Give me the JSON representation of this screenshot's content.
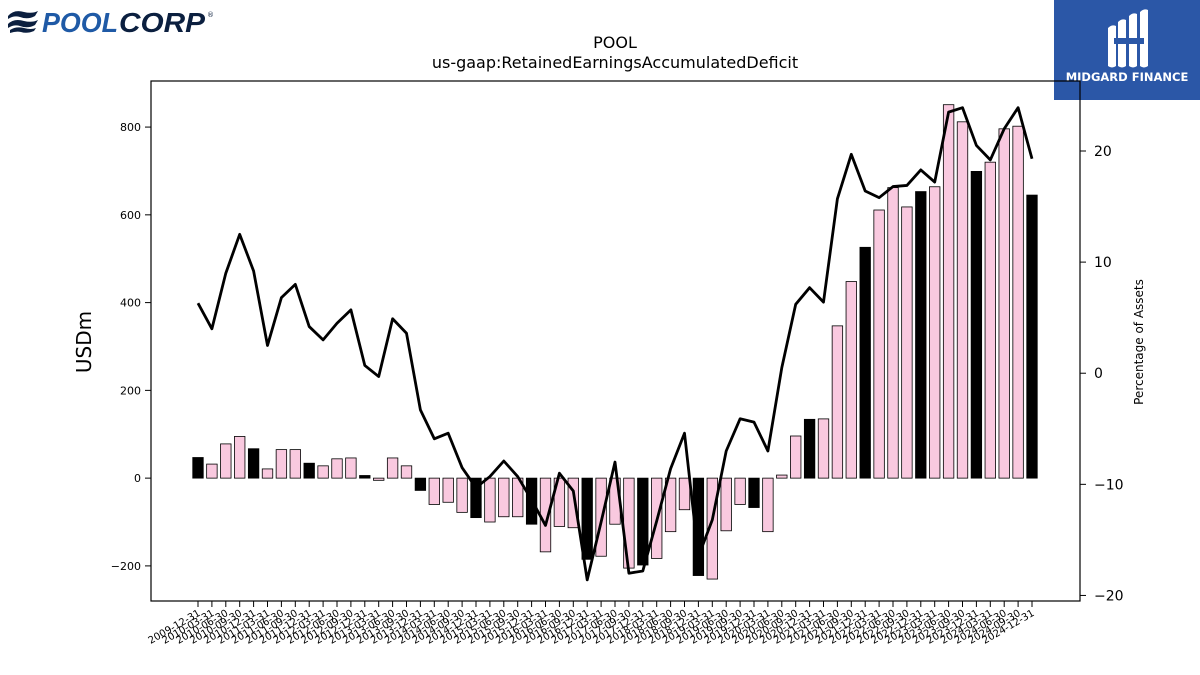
{
  "brand": {
    "left_logo": {
      "wordmark_a": "POOL",
      "wordmark_b": "CORP",
      "mark": "®",
      "color": "#1f5aa6"
    },
    "right_logo": {
      "name": "MIDGARD FINANCE",
      "bg": "#2b57a7"
    }
  },
  "chart_data": {
    "type": "bar+line",
    "title": "POOL",
    "subtitle": "us-gaap:RetainedEarningsAccumulatedDeficit",
    "ylabel": "USDm",
    "y2label": "Percentage of Assets",
    "ylim": [
      -280,
      905
    ],
    "y2lim": [
      -20.5,
      26.3
    ],
    "yticks": [
      -200,
      0,
      200,
      400,
      600,
      800
    ],
    "y2ticks": [
      -20,
      -10,
      0,
      10,
      20
    ],
    "bar_fill": "#f9c9df",
    "bar_fill_q4": "#000000",
    "line_color": "#000000",
    "categories": [
      "2009-12-31",
      "2010-03-31",
      "2010-06-30",
      "2010-09-30",
      "2010-12-31",
      "2011-03-31",
      "2011-06-30",
      "2011-09-30",
      "2011-12-31",
      "2012-03-31",
      "2012-06-30",
      "2012-09-30",
      "2012-12-31",
      "2013-03-31",
      "2013-06-30",
      "2013-09-30",
      "2013-12-31",
      "2014-03-31",
      "2014-06-30",
      "2014-09-30",
      "2014-12-31",
      "2015-03-31",
      "2015-06-30",
      "2015-09-30",
      "2015-12-31",
      "2016-03-31",
      "2016-06-30",
      "2016-09-30",
      "2016-12-31",
      "2017-03-31",
      "2017-06-30",
      "2017-09-30",
      "2017-12-31",
      "2018-03-31",
      "2018-06-30",
      "2018-09-30",
      "2018-12-31",
      "2019-03-31",
      "2019-06-30",
      "2019-09-30",
      "2019-12-31",
      "2020-03-31",
      "2020-06-30",
      "2020-09-30",
      "2020-12-31",
      "2021-03-31",
      "2021-06-30",
      "2021-09-30",
      "2021-12-31",
      "2022-03-31",
      "2022-06-30",
      "2022-09-30",
      "2022-12-31",
      "2023-03-31",
      "2023-06-30",
      "2023-09-30",
      "2023-12-31",
      "2024-03-31",
      "2024-06-30",
      "2024-09-30",
      "2024-12-31"
    ],
    "tick_labels": [
      "2009-12-31",
      "2010-03-31",
      "2010-06-30",
      "2010-09-30",
      "2010-12-31",
      "2011-03-31",
      "2011-06-30",
      "2011-09-30",
      "2011-12-31",
      "2012-03-31",
      "2012-06-30",
      "2012-09-30",
      "2012-12-31",
      "2013-03-31",
      "2013-06-30",
      "2013-09-30",
      "2013-12-31",
      "2014-03-31",
      "2014-06-30",
      "2014-09-30",
      "2014-12-31",
      "2015-03-31",
      "2015-06-30",
      "2015-09-30",
      "2015-12-31",
      "2016-03-31",
      "2016-06-30",
      "2016-09-30",
      "2016-12-31",
      "2017-03-31",
      "2017-06-30",
      "2017-09-30",
      "2017-12-31",
      "2018-03-31",
      "2018-06-30",
      "2018-09-30",
      "2018-12-31",
      "2019-03-31",
      "2019-06-30",
      "2019-09-30",
      "2019-12-31",
      "2020-03-31",
      "2020-06-30",
      "2020-09-30",
      "2020-12-31",
      "2021-03-31",
      "2021-06-30",
      "2021-09-30",
      "2021-12-31",
      "2022-03-31",
      "2022-06-30",
      "2022-09-30",
      "2022-12-31",
      "2023-03-31",
      "2023-06-30",
      "2023-09-30",
      "2023-12-31",
      "2024-03-31",
      "2024-06-30",
      "2024-09-30",
      "2024-12-31"
    ],
    "series": [
      {
        "name": "USDm",
        "kind": "bar",
        "values": [
          47,
          32,
          78,
          95,
          67,
          21,
          65,
          65,
          34,
          28,
          44,
          46,
          6,
          -5,
          46,
          28,
          -28,
          -60,
          -55,
          -78,
          -90,
          -100,
          -88,
          -88,
          -105,
          -168,
          -110,
          -113,
          -185,
          -178,
          -105,
          -205,
          -198,
          -183,
          -122,
          -72,
          -222,
          -230,
          -120,
          -60,
          -67,
          -122,
          7,
          96,
          134,
          135,
          347,
          448,
          526,
          611,
          662,
          618,
          653,
          664,
          851,
          812,
          699,
          720,
          796,
          802,
          645
        ]
      },
      {
        "name": "Percentage of Assets",
        "kind": "line",
        "values": [
          6.3,
          4.0,
          9.0,
          12.5,
          9.2,
          2.5,
          6.8,
          8.0,
          4.2,
          3.0,
          4.5,
          5.7,
          0.7,
          -0.3,
          4.9,
          3.6,
          -3.3,
          -5.9,
          -5.4,
          -8.5,
          -10.3,
          -9.3,
          -7.9,
          -9.3,
          -11.4,
          -13.7,
          -9.0,
          -10.6,
          -18.6,
          -13.4,
          -8.0,
          -18.0,
          -17.8,
          -13.3,
          -8.6,
          -5.4,
          -16.5,
          -13.2,
          -7.0,
          -4.1,
          -4.4,
          -7.0,
          0.5,
          6.2,
          7.7,
          6.4,
          15.7,
          19.7,
          16.4,
          15.8,
          16.8,
          16.9,
          18.3,
          17.2,
          23.5,
          23.9,
          20.5,
          19.2,
          22.0,
          23.9,
          19.3
        ]
      }
    ],
    "grid": false,
    "legend": "none"
  }
}
